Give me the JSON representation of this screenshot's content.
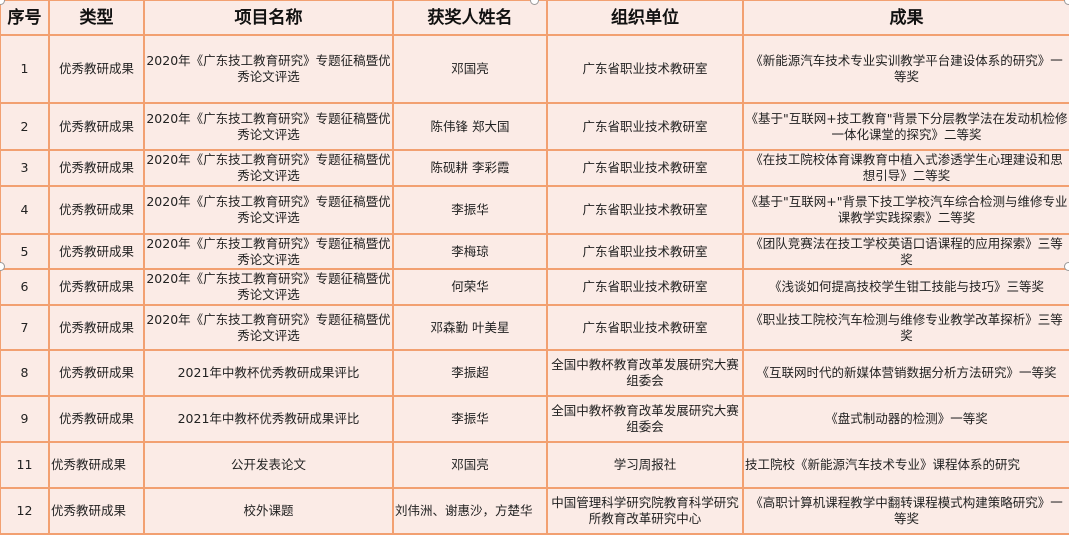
{
  "headers": [
    "序号",
    "类型",
    "项目名称",
    "获奖人姓名",
    "组织单位",
    "成果"
  ],
  "rows": [
    {
      "no": "1",
      "type": "优秀教研成果",
      "project": "2020年《广东技工教育研究》专题征稿暨优秀论文评选",
      "winners": "邓国亮",
      "org": "广东省职业技术教研室",
      "result": "《新能源汽车技术专业实训教学平台建设体系的研究》一等奖"
    },
    {
      "no": "2",
      "type": "优秀教研成果",
      "project": "2020年《广东技工教育研究》专题征稿暨优秀论文评选",
      "winners": "陈伟锋 郑大国",
      "org": "广东省职业技术教研室",
      "result": "《基于\"互联网+技工教育\"背景下分层教学法在发动机检修一体化课堂的探究》二等奖"
    },
    {
      "no": "3",
      "type": "优秀教研成果",
      "project": "2020年《广东技工教育研究》专题征稿暨优秀论文评选",
      "winners": "陈砚耕 李彩霞",
      "org": "广东省职业技术教研室",
      "result": "《在技工院校体育课教育中植入式渗透学生心理建设和思想引导》二等奖"
    },
    {
      "no": "4",
      "type": "优秀教研成果",
      "project": "2020年《广东技工教育研究》专题征稿暨优秀论文评选",
      "winners": "李振华",
      "org": "广东省职业技术教研室",
      "result": "《基于\"互联网+\"背景下技工学校汽车综合检测与维修专业课教学实践探索》二等奖"
    },
    {
      "no": "5",
      "type": "优秀教研成果",
      "project": "2020年《广东技工教育研究》专题征稿暨优秀论文评选",
      "winners": "李梅琼",
      "org": "广东省职业技术教研室",
      "result": "《团队竞赛法在技工学校英语口语课程的应用探索》三等奖"
    },
    {
      "no": "6",
      "type": "优秀教研成果",
      "project": "2020年《广东技工教育研究》专题征稿暨优秀论文评选",
      "winners": "何荣华",
      "org": "广东省职业技术教研室",
      "result": "《浅谈如何提高技校学生钳工技能与技巧》三等奖"
    },
    {
      "no": "7",
      "type": "优秀教研成果",
      "project": "2020年《广东技工教育研究》专题征稿暨优秀论文评选",
      "winners": "邓森勤 叶美星",
      "org": "广东省职业技术教研室",
      "result": "《职业技工院校汽车检测与维修专业教学改革探析》三等奖"
    },
    {
      "no": "8",
      "type": "优秀教研成果",
      "project": "2021年中教杯优秀教研成果评比",
      "winners": "李振超",
      "org": "全国中教杯教育改革发展研究大赛组委会",
      "result": "《互联网时代的新媒体营销数据分析方法研究》一等奖"
    },
    {
      "no": "9",
      "type": "优秀教研成果",
      "project": "2021年中教杯优秀教研成果评比",
      "winners": "李振华",
      "org": "全国中教杯教育改革发展研究大赛组委会",
      "result": "《盘式制动器的检测》一等奖"
    },
    {
      "no": "11",
      "type": "优秀教研成果",
      "project": "公开发表论文",
      "winners": "邓国亮",
      "org": "学习周报社",
      "result": "技工院校《新能源汽车技术专业》课程体系的研究"
    },
    {
      "no": "12",
      "type": "优秀教研成果",
      "project": "校外课题",
      "winners": "刘伟洲、谢惠沙，方楚华",
      "org": "中国管理科学研究院教育科学研究所教育改革研究中心",
      "result": "《高职计算机课程教学中翻转课程模式构建策略研究》一等奖"
    }
  ]
}
